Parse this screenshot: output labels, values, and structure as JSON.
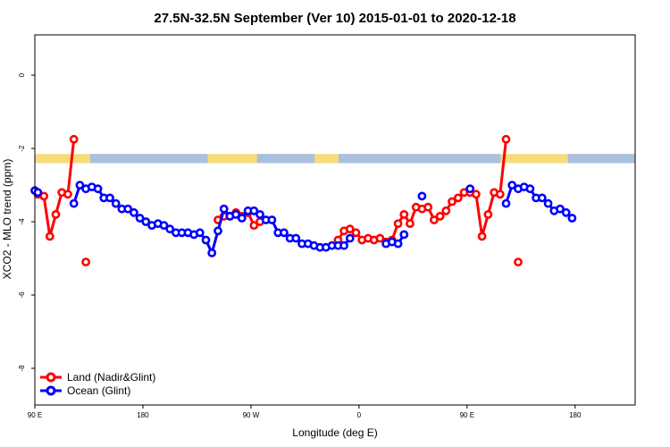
{
  "chart_data": {
    "type": "line",
    "title": "27.5N-32.5N September (Ver 10)   2015-01-01 to 2020-12-18",
    "xlabel": "Longitude (deg E)",
    "ylabel": "XCO2 - MLO trend (ppm)",
    "xlim": [
      90,
      590
    ],
    "ylim": [
      -9,
      1.1
    ],
    "x_ticks": [
      {
        "value": 90,
        "label": "90 E"
      },
      {
        "value": 180,
        "label": "180"
      },
      {
        "value": 270,
        "label": "90 W"
      },
      {
        "value": 360,
        "label": "0"
      },
      {
        "value": 450,
        "label": "90 E"
      },
      {
        "value": 540,
        "label": "180"
      }
    ],
    "y_ticks": [
      {
        "value": 0,
        "label": "0"
      },
      {
        "value": -2,
        "label": "-2"
      },
      {
        "value": -4,
        "label": "-4"
      },
      {
        "value": -6,
        "label": "-6"
      },
      {
        "value": -8,
        "label": "-8"
      }
    ],
    "land_mask_band": {
      "y_top": -2.15,
      "y_bottom": -2.4,
      "land_color": "#f7dc7c",
      "ocean_color": "#a9c0e0"
    },
    "legend_position": "bottom-left",
    "series": [
      {
        "name": "Land (Nadir&Glint)",
        "color": "#ff0000",
        "points": [
          {
            "x": 92.5,
            "y": -3.25
          },
          {
            "x": 97.5,
            "y": -3.3
          },
          {
            "x": 102.5,
            "y": -4.4
          },
          {
            "x": 107.5,
            "y": -3.8
          },
          {
            "x": 112.5,
            "y": -3.2
          },
          {
            "x": 117.5,
            "y": -3.25
          },
          {
            "x": 122.5,
            "y": -1.75
          },
          {
            "x": 132.5,
            "y": -5.1
          },
          {
            "x": 242.5,
            "y": -3.95
          },
          {
            "x": 247.5,
            "y": -3.85
          },
          {
            "x": 252.5,
            "y": -3.85
          },
          {
            "x": 257.5,
            "y": -3.75
          },
          {
            "x": 262.5,
            "y": -3.85
          },
          {
            "x": 267.5,
            "y": -3.75
          },
          {
            "x": 272.5,
            "y": -4.1
          },
          {
            "x": 277.5,
            "y": -4.0
          },
          {
            "x": 342.5,
            "y": -4.5
          },
          {
            "x": 347.5,
            "y": -4.25
          },
          {
            "x": 352.5,
            "y": -4.2
          },
          {
            "x": 357.5,
            "y": -4.3
          },
          {
            "x": 362.5,
            "y": -4.5
          },
          {
            "x": 367.5,
            "y": -4.45
          },
          {
            "x": 372.5,
            "y": -4.5
          },
          {
            "x": 377.5,
            "y": -4.45
          },
          {
            "x": 382.5,
            "y": -4.55
          },
          {
            "x": 387.5,
            "y": -4.5
          },
          {
            "x": 392.5,
            "y": -4.05
          },
          {
            "x": 397.5,
            "y": -3.8
          },
          {
            "x": 402.5,
            "y": -4.05
          },
          {
            "x": 407.5,
            "y": -3.6
          },
          {
            "x": 412.5,
            "y": -3.65
          },
          {
            "x": 417.5,
            "y": -3.6
          },
          {
            "x": 422.5,
            "y": -3.95
          },
          {
            "x": 427.5,
            "y": -3.85
          },
          {
            "x": 432.5,
            "y": -3.7
          },
          {
            "x": 437.5,
            "y": -3.45
          },
          {
            "x": 442.5,
            "y": -3.35
          },
          {
            "x": 447.5,
            "y": -3.2
          },
          {
            "x": 452.5,
            "y": -3.2
          },
          {
            "x": 457.5,
            "y": -3.25
          },
          {
            "x": 462.5,
            "y": -4.4
          },
          {
            "x": 467.5,
            "y": -3.8
          },
          {
            "x": 472.5,
            "y": -3.2
          },
          {
            "x": 477.5,
            "y": -3.25
          },
          {
            "x": 482.5,
            "y": -1.75
          },
          {
            "x": 492.5,
            "y": -5.1
          }
        ]
      },
      {
        "name": "Ocean (Glint)",
        "color": "#0000ff",
        "points": [
          {
            "x": 90,
            "y": -3.15
          },
          {
            "x": 92.5,
            "y": -3.2
          },
          {
            "x": 122.5,
            "y": -3.5
          },
          {
            "x": 127.5,
            "y": -3.0
          },
          {
            "x": 132.5,
            "y": -3.1
          },
          {
            "x": 137.5,
            "y": -3.05
          },
          {
            "x": 142.5,
            "y": -3.1
          },
          {
            "x": 147.5,
            "y": -3.35
          },
          {
            "x": 152.5,
            "y": -3.35
          },
          {
            "x": 157.5,
            "y": -3.5
          },
          {
            "x": 162.5,
            "y": -3.65
          },
          {
            "x": 167.5,
            "y": -3.65
          },
          {
            "x": 172.5,
            "y": -3.75
          },
          {
            "x": 177.5,
            "y": -3.9
          },
          {
            "x": 182.5,
            "y": -4.0
          },
          {
            "x": 187.5,
            "y": -4.1
          },
          {
            "x": 192.5,
            "y": -4.05
          },
          {
            "x": 197.5,
            "y": -4.1
          },
          {
            "x": 202.5,
            "y": -4.2
          },
          {
            "x": 207.5,
            "y": -4.3
          },
          {
            "x": 212.5,
            "y": -4.3
          },
          {
            "x": 217.5,
            "y": -4.3
          },
          {
            "x": 222.5,
            "y": -4.35
          },
          {
            "x": 227.5,
            "y": -4.3
          },
          {
            "x": 232.5,
            "y": -4.5
          },
          {
            "x": 237.5,
            "y": -4.85
          },
          {
            "x": 242.5,
            "y": -4.25
          },
          {
            "x": 247.5,
            "y": -3.65
          },
          {
            "x": 252.5,
            "y": -3.85
          },
          {
            "x": 257.5,
            "y": -3.8
          },
          {
            "x": 262.5,
            "y": -3.9
          },
          {
            "x": 267.5,
            "y": -3.7
          },
          {
            "x": 272.5,
            "y": -3.7
          },
          {
            "x": 277.5,
            "y": -3.8
          },
          {
            "x": 282.5,
            "y": -3.95
          },
          {
            "x": 287.5,
            "y": -3.95
          },
          {
            "x": 292.5,
            "y": -4.3
          },
          {
            "x": 297.5,
            "y": -4.3
          },
          {
            "x": 302.5,
            "y": -4.45
          },
          {
            "x": 307.5,
            "y": -4.45
          },
          {
            "x": 312.5,
            "y": -4.6
          },
          {
            "x": 317.5,
            "y": -4.6
          },
          {
            "x": 322.5,
            "y": -4.65
          },
          {
            "x": 327.5,
            "y": -4.7
          },
          {
            "x": 332.5,
            "y": -4.7
          },
          {
            "x": 337.5,
            "y": -4.65
          },
          {
            "x": 342.5,
            "y": -4.65
          },
          {
            "x": 347.5,
            "y": -4.65
          },
          {
            "x": 352.5,
            "y": -4.45
          },
          {
            "x": 382.5,
            "y": -4.6
          },
          {
            "x": 387.5,
            "y": -4.55
          },
          {
            "x": 392.5,
            "y": -4.6
          },
          {
            "x": 397.5,
            "y": -4.35
          },
          {
            "x": 412.5,
            "y": -3.3
          },
          {
            "x": 452.5,
            "y": -3.1
          },
          {
            "x": 482.5,
            "y": -3.5
          },
          {
            "x": 487.5,
            "y": -3.0
          },
          {
            "x": 492.5,
            "y": -3.1
          },
          {
            "x": 497.5,
            "y": -3.05
          },
          {
            "x": 502.5,
            "y": -3.1
          },
          {
            "x": 507.5,
            "y": -3.35
          },
          {
            "x": 512.5,
            "y": -3.35
          },
          {
            "x": 517.5,
            "y": -3.5
          },
          {
            "x": 522.5,
            "y": -3.7
          },
          {
            "x": 527.5,
            "y": -3.65
          },
          {
            "x": 532.5,
            "y": -3.75
          },
          {
            "x": 537.5,
            "y": -3.9
          }
        ]
      }
    ]
  }
}
